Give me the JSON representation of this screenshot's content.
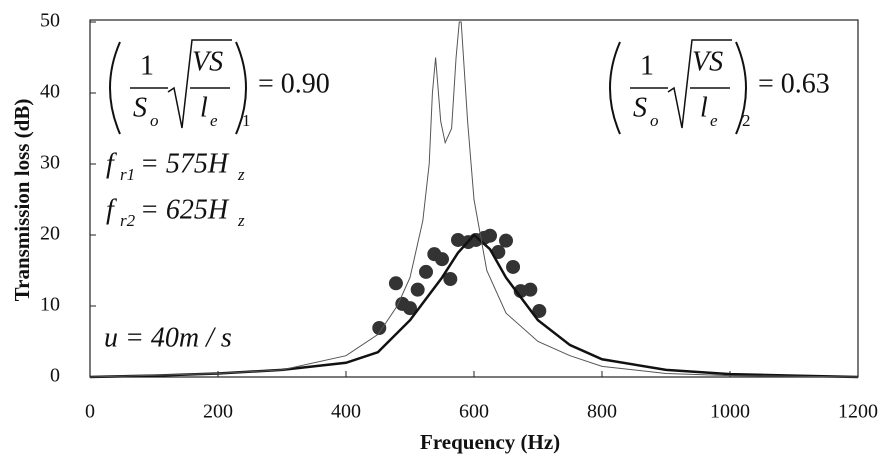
{
  "chart_data": {
    "type": "line",
    "x_label": "Frequency (Hz)",
    "y_label": "Transmission loss (dB)",
    "xlim": [
      0,
      1200
    ],
    "xticks": [
      0,
      200,
      400,
      600,
      800,
      1000,
      1200
    ],
    "ylim": [
      0,
      50
    ],
    "yticks": [
      0,
      10,
      20,
      30,
      40,
      50
    ],
    "series": [
      {
        "kind": "scatter",
        "color": "#333333",
        "x": [
          452,
          478,
          488,
          500,
          512,
          525,
          538,
          550,
          563,
          575,
          591,
          603,
          616,
          625,
          638,
          650,
          661,
          673,
          688,
          702
        ],
        "values": [
          6.9,
          13.2,
          10.3,
          9.7,
          12.3,
          14.8,
          17.3,
          16.6,
          13.8,
          19.3,
          19.0,
          19.3,
          19.6,
          19.9,
          17.6,
          19.2,
          15.5,
          12.1,
          12.3,
          9.3
        ]
      },
      {
        "kind": "line",
        "color": "#111111",
        "width": 2.5,
        "x": [
          0,
          100,
          200,
          300,
          400,
          450,
          500,
          525,
          550,
          575,
          600,
          625,
          650,
          700,
          750,
          800,
          900,
          1000,
          1100,
          1200
        ],
        "values": [
          0,
          0.2,
          0.5,
          1,
          2,
          3.5,
          8,
          11,
          14,
          17.5,
          20,
          18,
          14,
          8,
          4.5,
          2.5,
          1,
          0.4,
          0.2,
          0
        ]
      },
      {
        "kind": "line",
        "color": "#555555",
        "width": 1,
        "x": [
          0,
          200,
          300,
          400,
          450,
          480,
          500,
          520,
          530,
          535,
          540,
          548,
          555,
          565,
          572,
          577,
          580,
          590,
          600,
          620,
          650,
          700,
          750,
          800,
          900,
          1000,
          1200
        ],
        "values": [
          0,
          0.5,
          1,
          3,
          6,
          10,
          14,
          22,
          30,
          40,
          45,
          36,
          33,
          35,
          45,
          50,
          50,
          36,
          25,
          15,
          9,
          5,
          3,
          1.5,
          0.5,
          0.2,
          0
        ]
      }
    ],
    "annotations": [
      {
        "numerator": "1",
        "denominator": "S",
        "denominator_sub": "o",
        "radicand_top": "VS",
        "radicand_bottom": "l",
        "radicand_bottom_sub": "e",
        "outer_sub": "1",
        "rhs": "= 0.90"
      },
      {
        "numerator": "1",
        "denominator": "S",
        "denominator_sub": "o",
        "radicand_top": "VS",
        "radicand_bottom": "l",
        "radicand_bottom_sub": "e",
        "outer_sub": "2",
        "rhs": "= 0.63"
      }
    ],
    "frequencies": [
      {
        "symbol": "f",
        "sub": "r1",
        "text": "= 575H",
        "unit_sub": "z"
      },
      {
        "symbol": "f",
        "sub": "r2",
        "text": "= 625H",
        "unit_sub": "z"
      }
    ],
    "speed": "u = 40m / s"
  }
}
